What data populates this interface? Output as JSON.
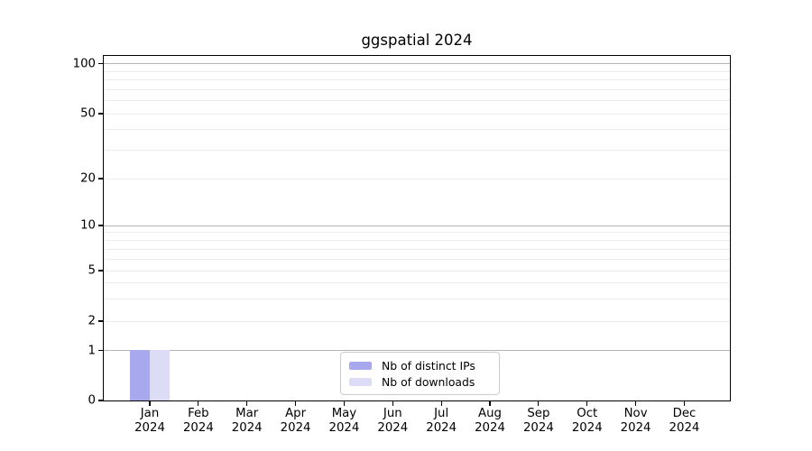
{
  "chart_data": {
    "type": "bar",
    "title": "ggspatial 2024",
    "categories": [
      "Jan 2024",
      "Feb 2024",
      "Mar 2024",
      "Apr 2024",
      "May 2024",
      "Jun 2024",
      "Jul 2024",
      "Aug 2024",
      "Sep 2024",
      "Oct 2024",
      "Nov 2024",
      "Dec 2024"
    ],
    "months": [
      "Jan",
      "Feb",
      "Mar",
      "Apr",
      "May",
      "Jun",
      "Jul",
      "Aug",
      "Sep",
      "Oct",
      "Nov",
      "Dec"
    ],
    "year_label": "2024",
    "series": [
      {
        "name": "Nb of distinct IPs",
        "color": "#a8a8ee",
        "values": [
          1,
          0,
          0,
          0,
          0,
          0,
          0,
          0,
          0,
          0,
          0,
          0
        ]
      },
      {
        "name": "Nb of downloads",
        "color": "#dcdcf6",
        "values": [
          1,
          0,
          0,
          0,
          0,
          0,
          0,
          0,
          0,
          0,
          0,
          0
        ]
      }
    ],
    "xlabel": "",
    "ylabel": "",
    "y_axis": {
      "scale": "symlog",
      "tick_values": [
        0,
        1,
        2,
        5,
        10,
        20,
        50,
        100
      ],
      "major_grid_values": [
        1,
        10,
        100
      ],
      "minor_grid_values": [
        2,
        3,
        4,
        5,
        6,
        7,
        8,
        9,
        20,
        30,
        40,
        50,
        60,
        70,
        80,
        90
      ],
      "ylim": [
        0,
        115
      ]
    },
    "legend": {
      "position": "lower-center-inside",
      "entries": [
        "Nb of distinct IPs",
        "Nb of downloads"
      ]
    },
    "grid": "on",
    "colors": {
      "major_grid": "#b3b3b3",
      "minor_grid": "#ececec",
      "spine": "#000000",
      "background": "#ffffff"
    }
  }
}
